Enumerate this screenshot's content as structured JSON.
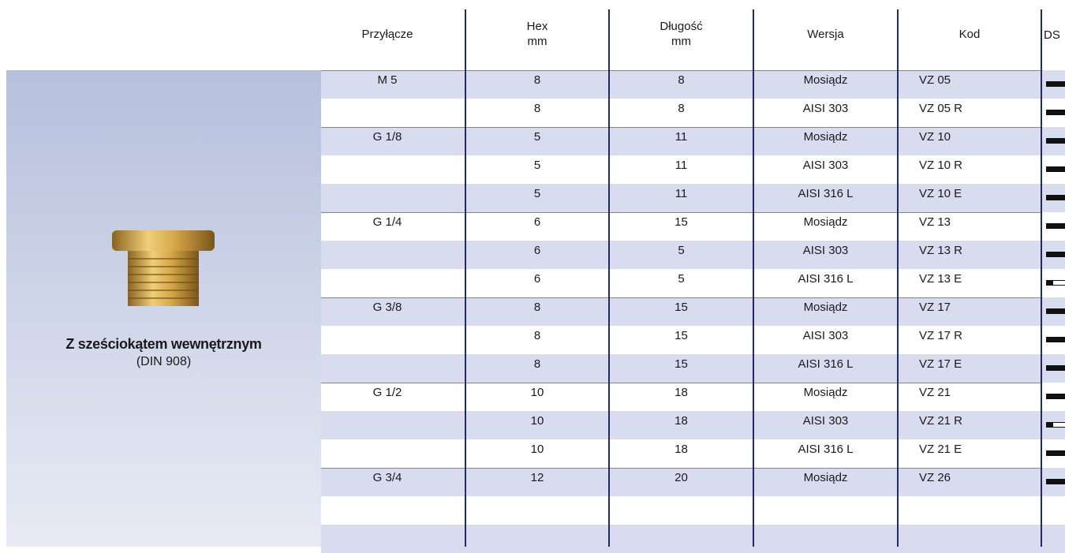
{
  "header": {
    "columns": [
      [
        "Przyłącze"
      ],
      [
        "Hex",
        "mm"
      ],
      [
        "Długość",
        "mm"
      ],
      [
        "Wersja"
      ],
      [
        "Kod"
      ],
      [
        "DS"
      ]
    ]
  },
  "product": {
    "title": "Z sześciokątem wewnętrznym",
    "subtitle": "(DIN 908)"
  },
  "table": {
    "rows": [
      [
        "M 5",
        "8",
        "8",
        "Mosiądz",
        "VZ 05"
      ],
      [
        null,
        "8",
        "8",
        "AISI 303",
        "VZ 05 R"
      ],
      [
        "G 1/8",
        "5",
        "11",
        "Mosiądz",
        "VZ 10"
      ],
      [
        null,
        "5",
        "11",
        "AISI 303",
        "VZ 10 R"
      ],
      [
        null,
        "5",
        "11",
        "AISI 316 L",
        "VZ 10 E"
      ],
      [
        "G 1/4",
        "6",
        "15",
        "Mosiądz",
        "VZ 13"
      ],
      [
        null,
        "6",
        "5",
        "AISI 303",
        "VZ 13 R"
      ],
      [
        null,
        "6",
        "5",
        "AISI 316 L",
        "VZ 13 E"
      ],
      [
        "G 3/8",
        "8",
        "15",
        "Mosiądz",
        "VZ 17"
      ],
      [
        null,
        "8",
        "15",
        "AISI 303",
        "VZ 17 R"
      ],
      [
        null,
        "8",
        "15",
        "AISI 316 L",
        "VZ 17 E"
      ],
      [
        "G 1/2",
        "10",
        "18",
        "Mosiądz",
        "VZ 21"
      ],
      [
        null,
        "10",
        "18",
        "AISI 303",
        "VZ 21 R"
      ],
      [
        null,
        "10",
        "18",
        "AISI 316 L",
        "VZ 21 E"
      ],
      [
        "G 3/4",
        "12",
        "20",
        "Mosiądz",
        "VZ 26"
      ]
    ]
  }
}
